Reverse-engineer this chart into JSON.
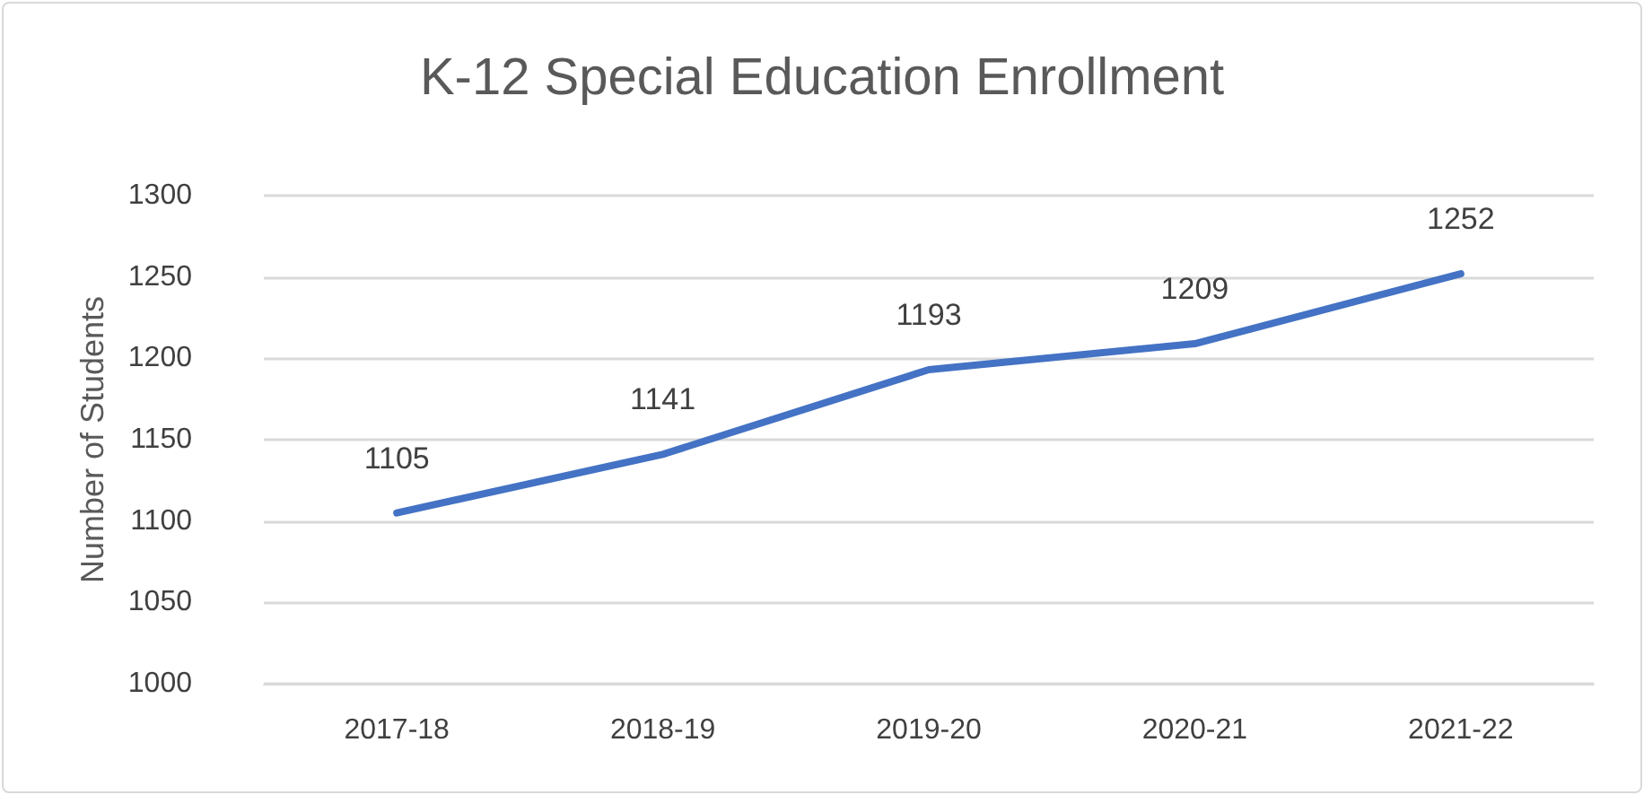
{
  "chart_data": {
    "type": "line",
    "title": "K-12 Special Education Enrollment",
    "ylabel": "Number of Students",
    "categories": [
      "2017-18",
      "2018-19",
      "2019-20",
      "2020-21",
      "2021-22"
    ],
    "series": [
      {
        "color": "#4472c4",
        "values": [
          1105,
          1141,
          1193,
          1209,
          1252
        ]
      }
    ],
    "ylim": [
      1000,
      1300
    ],
    "yticks": [
      1000,
      1050,
      1100,
      1150,
      1200,
      1250,
      1300
    ],
    "grid": "y",
    "data_labels": true,
    "marker": "none",
    "line_style": "solid"
  }
}
